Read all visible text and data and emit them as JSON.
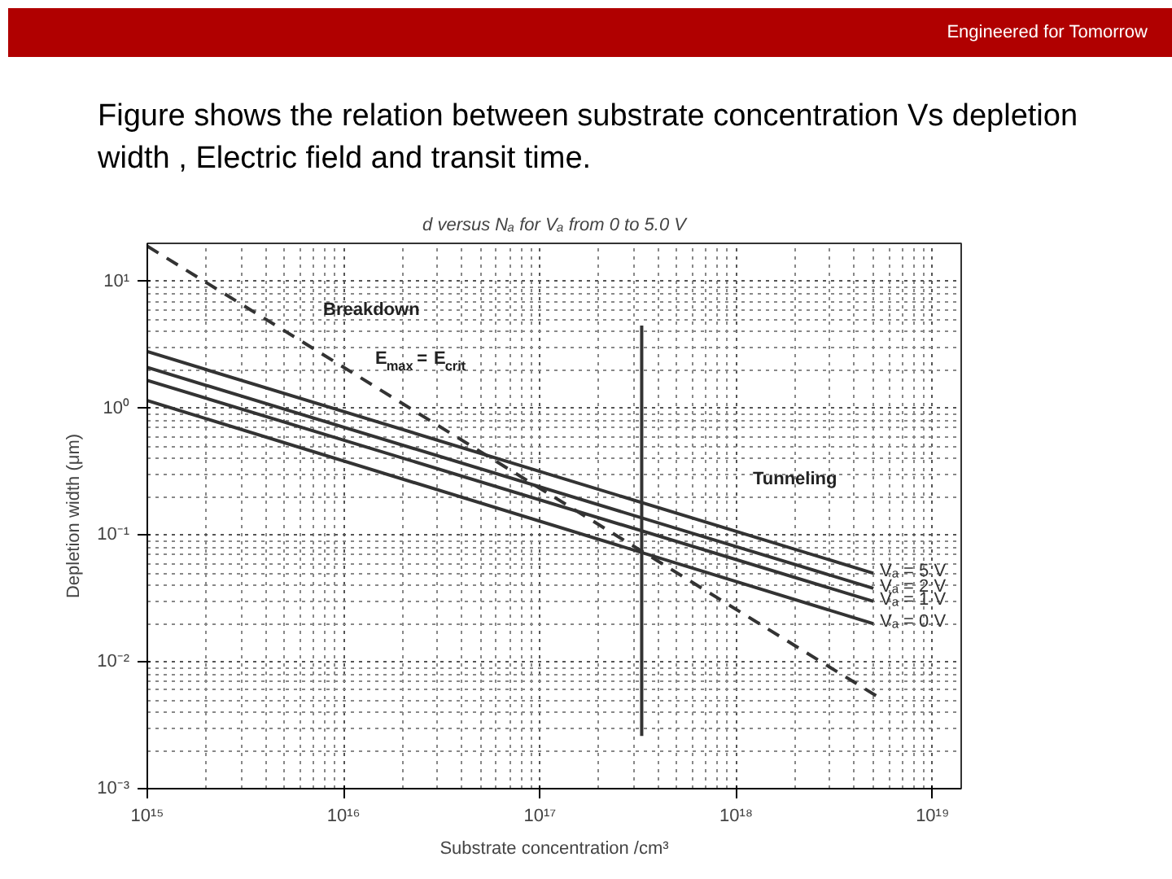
{
  "chart_data": {
    "type": "line",
    "title": "Figure shows the relation between substrate concentration Vs depletion width , Electric field and transit time.",
    "subtitle": "d versus Nₐ for Vₐ from 0 to 5.0 V",
    "xlabel": "Substrate concentration /cm³",
    "ylabel": "Depletion width (μm)",
    "log": "xy",
    "grid": true,
    "legend": false,
    "marker": "none",
    "xlim": [
      1000000000000000.0,
      1.4e+19
    ],
    "ylim": [
      0.001,
      20
    ],
    "xticks": [
      {
        "value": 1000000000000000.0,
        "label": "10¹⁵"
      },
      {
        "value": 1e+16,
        "label": "10¹⁶"
      },
      {
        "value": 1e+17,
        "label": "10¹⁷"
      },
      {
        "value": 1e+18,
        "label": "10¹⁸"
      },
      {
        "value": 1e+19,
        "label": "10¹⁹"
      }
    ],
    "yticks": [
      {
        "value": 0.001,
        "label": "10⁻³"
      },
      {
        "value": 0.01,
        "label": "10⁻²"
      },
      {
        "value": 0.1,
        "label": "10⁻¹"
      },
      {
        "value": 1,
        "label": "10⁰"
      },
      {
        "value": 10,
        "label": "10¹"
      }
    ],
    "series": [
      {
        "name": "Vₐ = 5 V",
        "color": "#333333",
        "x": [
          1000000000000000.0,
          5e+18
        ],
        "values": [
          2.8,
          0.05
        ]
      },
      {
        "name": "Vₐ = 2 V",
        "color": "#333333",
        "x": [
          1000000000000000.0,
          5e+18
        ],
        "values": [
          2.1,
          0.038
        ]
      },
      {
        "name": "Vₐ = 1 V",
        "color": "#333333",
        "x": [
          1000000000000000.0,
          5e+18
        ],
        "values": [
          1.66,
          0.03
        ]
      },
      {
        "name": "Vₐ = 0 V",
        "color": "#333333",
        "x": [
          1000000000000000.0,
          5e+18
        ],
        "values": [
          1.15,
          0.02
        ]
      },
      {
        "color": "#333333",
        "line_style": "dashed",
        "x": [
          1000000000000000.0,
          5.6e+18
        ],
        "values": [
          19,
          0.005
        ]
      },
      {
        "color": "#333333",
        "x": [
          3.3e+17,
          3.3e+17
        ],
        "values": [
          4.5,
          0.0026
        ]
      }
    ],
    "annotations": [
      "Engineered for Tomorrow",
      "Breakdown",
      "E$_{max}$ = E$_{crit}$",
      "Tunneling"
    ]
  }
}
